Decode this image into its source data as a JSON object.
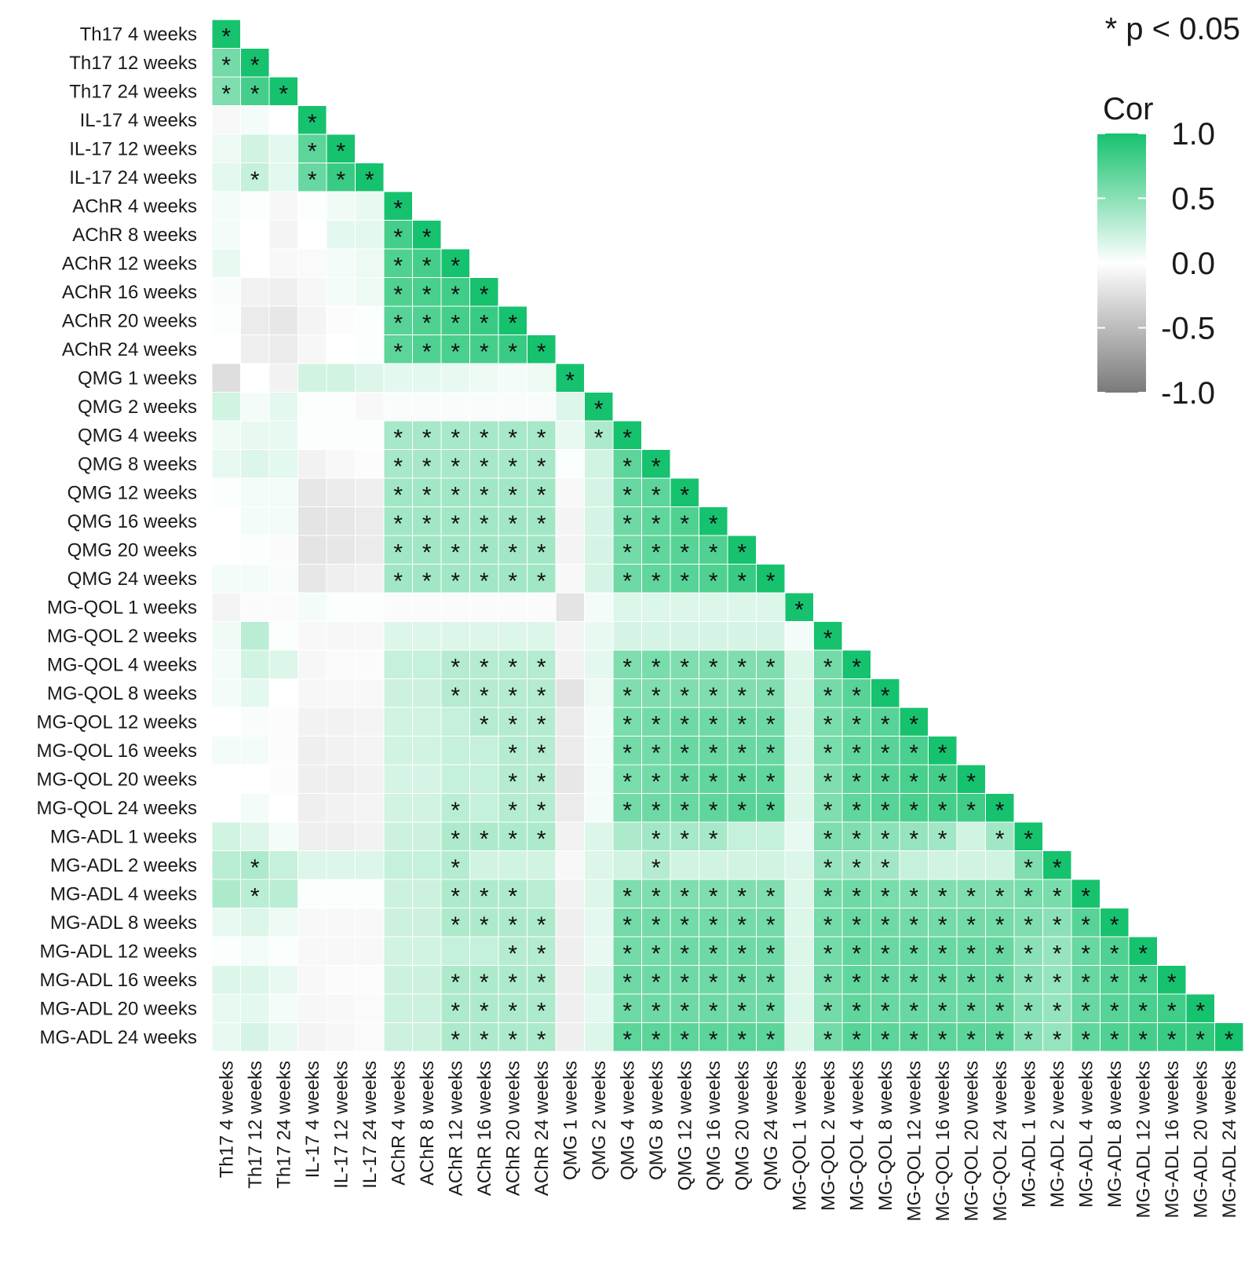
{
  "chart_data": {
    "type": "heatmap",
    "layout": "lower-triangle",
    "variables": [
      "Th17 4 weeks",
      "Th17 12 weeks",
      "Th17 24 weeks",
      "IL-17 4 weeks",
      "IL-17 12 weeks",
      "IL-17 24 weeks",
      "AChR 4 weeks",
      "AChR 8 weeks",
      "AChR 12 weeks",
      "AChR 16 weeks",
      "AChR 20 weeks",
      "AChR 24 weeks",
      "QMG 1 weeks",
      "QMG 2 weeks",
      "QMG 4 weeks",
      "QMG 8 weeks",
      "QMG 12 weeks",
      "QMG 16 weeks",
      "QMG 20 weeks",
      "QMG 24 weeks",
      "MG-QOL 1 weeks",
      "MG-QOL 2 weeks",
      "MG-QOL 4 weeks",
      "MG-QOL 8 weeks",
      "MG-QOL 12 weeks",
      "MG-QOL 16 weeks",
      "MG-QOL 20 weeks",
      "MG-QOL 24 weeks",
      "MG-ADL 1 weeks",
      "MG-ADL 2 weeks",
      "MG-ADL 4 weeks",
      "MG-ADL 8 weeks",
      "MG-ADL 12 weeks",
      "MG-ADL 16 weeks",
      "MG-ADL 20 weeks",
      "MG-ADL 24 weeks"
    ],
    "correlations": [
      [
        1.0
      ],
      [
        0.6,
        1.0
      ],
      [
        0.55,
        0.8,
        1.0
      ],
      [
        -0.05,
        0.05,
        0.0,
        1.0
      ],
      [
        0.08,
        0.2,
        0.12,
        0.7,
        1.0
      ],
      [
        0.12,
        0.25,
        0.12,
        0.65,
        0.85,
        1.0
      ],
      [
        0.05,
        0.02,
        -0.06,
        0.02,
        0.06,
        0.1,
        1.0
      ],
      [
        0.05,
        0.0,
        -0.08,
        0.0,
        0.12,
        0.12,
        0.8,
        1.0
      ],
      [
        0.1,
        0.0,
        -0.05,
        -0.04,
        0.05,
        0.08,
        0.75,
        0.8,
        1.0
      ],
      [
        0.03,
        -0.1,
        -0.12,
        -0.06,
        0.05,
        0.08,
        0.75,
        0.78,
        0.82,
        1.0
      ],
      [
        0.02,
        -0.15,
        -0.18,
        -0.08,
        -0.02,
        0.02,
        0.72,
        0.75,
        0.8,
        0.85,
        1.0
      ],
      [
        0.0,
        -0.12,
        -0.15,
        -0.06,
        0.0,
        0.02,
        0.7,
        0.75,
        0.78,
        0.8,
        0.85,
        1.0
      ],
      [
        -0.25,
        0.0,
        -0.1,
        0.2,
        0.2,
        0.15,
        0.12,
        0.12,
        0.1,
        0.08,
        0.05,
        0.08,
        1.0
      ],
      [
        0.2,
        0.05,
        0.12,
        0.02,
        0.02,
        -0.05,
        0.03,
        0.03,
        0.03,
        0.03,
        0.03,
        0.03,
        0.15,
        1.0
      ],
      [
        0.06,
        0.1,
        0.1,
        0.02,
        0.02,
        0.02,
        0.38,
        0.38,
        0.38,
        0.38,
        0.38,
        0.38,
        0.1,
        0.35,
        1.0
      ],
      [
        0.1,
        0.15,
        0.12,
        -0.1,
        -0.05,
        -0.02,
        0.38,
        0.38,
        0.38,
        0.38,
        0.38,
        0.38,
        0.02,
        0.2,
        0.7,
        1.0
      ],
      [
        0.02,
        0.05,
        0.05,
        -0.18,
        -0.15,
        -0.12,
        0.4,
        0.4,
        0.4,
        0.4,
        0.4,
        0.4,
        -0.05,
        0.18,
        0.65,
        0.7,
        1.0
      ],
      [
        0.0,
        0.05,
        0.05,
        -0.2,
        -0.18,
        -0.15,
        0.4,
        0.4,
        0.4,
        0.4,
        0.4,
        0.4,
        -0.08,
        0.18,
        0.62,
        0.68,
        0.75,
        1.0
      ],
      [
        0.0,
        0.02,
        -0.03,
        -0.2,
        -0.18,
        -0.15,
        0.4,
        0.4,
        0.4,
        0.4,
        0.4,
        0.4,
        -0.08,
        0.18,
        0.6,
        0.68,
        0.72,
        0.75,
        1.0
      ],
      [
        0.05,
        0.05,
        0.03,
        -0.18,
        -0.12,
        -0.1,
        0.4,
        0.4,
        0.4,
        0.4,
        0.4,
        0.4,
        -0.05,
        0.18,
        0.62,
        0.68,
        0.72,
        0.75,
        0.85,
        1.0
      ],
      [
        -0.08,
        -0.03,
        -0.03,
        0.05,
        0.02,
        0.02,
        -0.03,
        -0.03,
        -0.03,
        -0.03,
        -0.03,
        -0.03,
        -0.2,
        0.05,
        0.15,
        0.15,
        0.15,
        0.15,
        0.15,
        0.15,
        1.0
      ],
      [
        0.06,
        0.3,
        0.02,
        -0.05,
        -0.06,
        -0.05,
        0.15,
        0.15,
        0.15,
        0.15,
        0.15,
        0.15,
        -0.08,
        0.1,
        0.18,
        0.18,
        0.18,
        0.18,
        0.18,
        0.18,
        0.05,
        1.0
      ],
      [
        0.05,
        0.2,
        0.15,
        -0.06,
        -0.04,
        -0.03,
        0.25,
        0.25,
        0.32,
        0.32,
        0.32,
        0.32,
        -0.1,
        0.12,
        0.55,
        0.58,
        0.55,
        0.55,
        0.55,
        0.55,
        0.15,
        0.6,
        1.0
      ],
      [
        0.05,
        0.12,
        0.0,
        -0.06,
        -0.05,
        -0.05,
        0.22,
        0.22,
        0.32,
        0.32,
        0.32,
        0.32,
        -0.2,
        0.08,
        0.55,
        0.55,
        0.55,
        0.55,
        0.55,
        0.55,
        0.15,
        0.6,
        0.72,
        1.0
      ],
      [
        0.0,
        0.03,
        -0.02,
        -0.1,
        -0.1,
        -0.08,
        0.2,
        0.2,
        0.25,
        0.32,
        0.32,
        0.32,
        -0.15,
        0.05,
        0.58,
        0.6,
        0.62,
        0.62,
        0.62,
        0.62,
        0.15,
        0.58,
        0.68,
        0.72,
        1.0
      ],
      [
        0.05,
        0.05,
        -0.02,
        -0.12,
        -0.1,
        -0.08,
        0.2,
        0.2,
        0.25,
        0.25,
        0.32,
        0.32,
        -0.15,
        0.05,
        0.6,
        0.6,
        0.65,
        0.65,
        0.65,
        0.65,
        0.15,
        0.58,
        0.68,
        0.72,
        0.78,
        1.0
      ],
      [
        0.0,
        0.0,
        -0.02,
        -0.12,
        -0.12,
        -0.1,
        0.18,
        0.18,
        0.25,
        0.25,
        0.32,
        0.32,
        -0.18,
        0.05,
        0.58,
        0.6,
        0.65,
        0.68,
        0.68,
        0.68,
        0.15,
        0.55,
        0.68,
        0.72,
        0.78,
        0.8,
        1.0
      ],
      [
        0.0,
        0.05,
        0.0,
        -0.12,
        -0.1,
        -0.08,
        0.2,
        0.2,
        0.3,
        0.25,
        0.32,
        0.32,
        -0.15,
        0.05,
        0.6,
        0.62,
        0.65,
        0.68,
        0.72,
        0.72,
        0.15,
        0.55,
        0.68,
        0.72,
        0.78,
        0.8,
        0.82,
        1.0
      ],
      [
        0.2,
        0.15,
        0.05,
        -0.12,
        -0.12,
        -0.1,
        0.22,
        0.22,
        0.35,
        0.35,
        0.35,
        0.35,
        -0.1,
        0.15,
        0.35,
        0.4,
        0.38,
        0.38,
        0.25,
        0.25,
        0.1,
        0.55,
        0.55,
        0.5,
        0.45,
        0.4,
        0.2,
        0.4,
        1.0
      ],
      [
        0.3,
        0.35,
        0.25,
        0.15,
        0.15,
        0.15,
        0.25,
        0.25,
        0.32,
        0.2,
        0.2,
        0.2,
        -0.05,
        0.15,
        0.2,
        0.32,
        0.2,
        0.2,
        0.2,
        0.2,
        0.15,
        0.45,
        0.45,
        0.4,
        0.25,
        0.2,
        0.2,
        0.2,
        0.55,
        1.0
      ],
      [
        0.35,
        0.3,
        0.3,
        0.02,
        0.02,
        0.02,
        0.22,
        0.22,
        0.35,
        0.35,
        0.35,
        0.3,
        -0.1,
        0.15,
        0.55,
        0.55,
        0.55,
        0.55,
        0.55,
        0.55,
        0.15,
        0.58,
        0.62,
        0.58,
        0.55,
        0.55,
        0.55,
        0.55,
        0.58,
        0.58,
        1.0
      ],
      [
        0.1,
        0.15,
        0.08,
        -0.05,
        -0.05,
        -0.05,
        0.22,
        0.22,
        0.35,
        0.35,
        0.35,
        0.35,
        -0.12,
        0.12,
        0.6,
        0.6,
        0.6,
        0.6,
        0.6,
        0.6,
        0.15,
        0.6,
        0.65,
        0.62,
        0.6,
        0.6,
        0.6,
        0.6,
        0.55,
        0.5,
        0.72,
        1.0
      ],
      [
        0.02,
        0.05,
        0.02,
        -0.05,
        -0.05,
        -0.05,
        0.2,
        0.2,
        0.25,
        0.25,
        0.32,
        0.32,
        -0.12,
        0.1,
        0.6,
        0.6,
        0.62,
        0.62,
        0.62,
        0.62,
        0.15,
        0.6,
        0.68,
        0.65,
        0.65,
        0.65,
        0.65,
        0.65,
        0.5,
        0.45,
        0.65,
        0.75,
        1.0
      ],
      [
        0.15,
        0.15,
        0.1,
        -0.05,
        -0.03,
        -0.02,
        0.22,
        0.22,
        0.35,
        0.35,
        0.35,
        0.35,
        -0.12,
        0.15,
        0.62,
        0.62,
        0.62,
        0.62,
        0.62,
        0.62,
        0.15,
        0.6,
        0.68,
        0.65,
        0.65,
        0.65,
        0.65,
        0.65,
        0.5,
        0.45,
        0.65,
        0.72,
        0.78,
        1.0
      ],
      [
        0.1,
        0.12,
        0.05,
        -0.06,
        -0.05,
        -0.04,
        0.22,
        0.22,
        0.35,
        0.35,
        0.35,
        0.35,
        -0.12,
        0.12,
        0.62,
        0.62,
        0.62,
        0.62,
        0.62,
        0.62,
        0.15,
        0.6,
        0.68,
        0.65,
        0.65,
        0.65,
        0.65,
        0.65,
        0.5,
        0.45,
        0.65,
        0.72,
        0.78,
        0.82,
        1.0
      ],
      [
        0.1,
        0.18,
        0.1,
        -0.08,
        -0.06,
        -0.04,
        0.22,
        0.22,
        0.35,
        0.35,
        0.35,
        0.35,
        -0.12,
        0.15,
        0.7,
        0.7,
        0.7,
        0.7,
        0.7,
        0.7,
        0.15,
        0.6,
        0.72,
        0.7,
        0.7,
        0.7,
        0.7,
        0.7,
        0.5,
        0.45,
        0.68,
        0.75,
        0.8,
        0.85,
        0.88,
        1.0
      ]
    ],
    "significance": [
      [
        1
      ],
      [
        1,
        1
      ],
      [
        1,
        1,
        1
      ],
      [
        0,
        0,
        0,
        1
      ],
      [
        0,
        0,
        0,
        1,
        1
      ],
      [
        0,
        1,
        0,
        1,
        1,
        1
      ],
      [
        0,
        0,
        0,
        0,
        0,
        0,
        1
      ],
      [
        0,
        0,
        0,
        0,
        0,
        0,
        1,
        1
      ],
      [
        0,
        0,
        0,
        0,
        0,
        0,
        1,
        1,
        1
      ],
      [
        0,
        0,
        0,
        0,
        0,
        0,
        1,
        1,
        1,
        1
      ],
      [
        0,
        0,
        0,
        0,
        0,
        0,
        1,
        1,
        1,
        1,
        1
      ],
      [
        0,
        0,
        0,
        0,
        0,
        0,
        1,
        1,
        1,
        1,
        1,
        1
      ],
      [
        0,
        0,
        0,
        0,
        0,
        0,
        0,
        0,
        0,
        0,
        0,
        0,
        1
      ],
      [
        0,
        0,
        0,
        0,
        0,
        0,
        0,
        0,
        0,
        0,
        0,
        0,
        0,
        1
      ],
      [
        0,
        0,
        0,
        0,
        0,
        0,
        1,
        1,
        1,
        1,
        1,
        1,
        0,
        1,
        1
      ],
      [
        0,
        0,
        0,
        0,
        0,
        0,
        1,
        1,
        1,
        1,
        1,
        1,
        0,
        0,
        1,
        1
      ],
      [
        0,
        0,
        0,
        0,
        0,
        0,
        1,
        1,
        1,
        1,
        1,
        1,
        0,
        0,
        1,
        1,
        1
      ],
      [
        0,
        0,
        0,
        0,
        0,
        0,
        1,
        1,
        1,
        1,
        1,
        1,
        0,
        0,
        1,
        1,
        1,
        1
      ],
      [
        0,
        0,
        0,
        0,
        0,
        0,
        1,
        1,
        1,
        1,
        1,
        1,
        0,
        0,
        1,
        1,
        1,
        1,
        1
      ],
      [
        0,
        0,
        0,
        0,
        0,
        0,
        1,
        1,
        1,
        1,
        1,
        1,
        0,
        0,
        1,
        1,
        1,
        1,
        1,
        1
      ],
      [
        0,
        0,
        0,
        0,
        0,
        0,
        0,
        0,
        0,
        0,
        0,
        0,
        0,
        0,
        0,
        0,
        0,
        0,
        0,
        0,
        1
      ],
      [
        0,
        0,
        0,
        0,
        0,
        0,
        0,
        0,
        0,
        0,
        0,
        0,
        0,
        0,
        0,
        0,
        0,
        0,
        0,
        0,
        0,
        1
      ],
      [
        0,
        0,
        0,
        0,
        0,
        0,
        0,
        0,
        1,
        1,
        1,
        1,
        0,
        0,
        1,
        1,
        1,
        1,
        1,
        1,
        0,
        1,
        1
      ],
      [
        0,
        0,
        0,
        0,
        0,
        0,
        0,
        0,
        1,
        1,
        1,
        1,
        0,
        0,
        1,
        1,
        1,
        1,
        1,
        1,
        0,
        1,
        1,
        1
      ],
      [
        0,
        0,
        0,
        0,
        0,
        0,
        0,
        0,
        0,
        1,
        1,
        1,
        0,
        0,
        1,
        1,
        1,
        1,
        1,
        1,
        0,
        1,
        1,
        1,
        1
      ],
      [
        0,
        0,
        0,
        0,
        0,
        0,
        0,
        0,
        0,
        0,
        1,
        1,
        0,
        0,
        1,
        1,
        1,
        1,
        1,
        1,
        0,
        1,
        1,
        1,
        1,
        1
      ],
      [
        0,
        0,
        0,
        0,
        0,
        0,
        0,
        0,
        0,
        0,
        1,
        1,
        0,
        0,
        1,
        1,
        1,
        1,
        1,
        1,
        0,
        1,
        1,
        1,
        1,
        1,
        1
      ],
      [
        0,
        0,
        0,
        0,
        0,
        0,
        0,
        0,
        1,
        0,
        1,
        1,
        0,
        0,
        1,
        1,
        1,
        1,
        1,
        1,
        0,
        1,
        1,
        1,
        1,
        1,
        1,
        1
      ],
      [
        0,
        0,
        0,
        0,
        0,
        0,
        0,
        0,
        1,
        1,
        1,
        1,
        0,
        0,
        0,
        1,
        1,
        1,
        0,
        0,
        0,
        1,
        1,
        1,
        1,
        1,
        0,
        1,
        1
      ],
      [
        0,
        1,
        0,
        0,
        0,
        0,
        0,
        0,
        1,
        0,
        0,
        0,
        0,
        0,
        0,
        1,
        0,
        0,
        0,
        0,
        0,
        1,
        1,
        1,
        0,
        0,
        0,
        0,
        1,
        1
      ],
      [
        0,
        1,
        0,
        0,
        0,
        0,
        0,
        0,
        1,
        1,
        1,
        0,
        0,
        0,
        1,
        1,
        1,
        1,
        1,
        1,
        0,
        1,
        1,
        1,
        1,
        1,
        1,
        1,
        1,
        1,
        1
      ],
      [
        0,
        0,
        0,
        0,
        0,
        0,
        0,
        0,
        1,
        1,
        1,
        1,
        0,
        0,
        1,
        1,
        1,
        1,
        1,
        1,
        0,
        1,
        1,
        1,
        1,
        1,
        1,
        1,
        1,
        1,
        1,
        1
      ],
      [
        0,
        0,
        0,
        0,
        0,
        0,
        0,
        0,
        0,
        0,
        1,
        1,
        0,
        0,
        1,
        1,
        1,
        1,
        1,
        1,
        0,
        1,
        1,
        1,
        1,
        1,
        1,
        1,
        1,
        1,
        1,
        1,
        1
      ],
      [
        0,
        0,
        0,
        0,
        0,
        0,
        0,
        0,
        1,
        1,
        1,
        1,
        0,
        0,
        1,
        1,
        1,
        1,
        1,
        1,
        0,
        1,
        1,
        1,
        1,
        1,
        1,
        1,
        1,
        1,
        1,
        1,
        1,
        1
      ],
      [
        0,
        0,
        0,
        0,
        0,
        0,
        0,
        0,
        1,
        1,
        1,
        1,
        0,
        0,
        1,
        1,
        1,
        1,
        1,
        1,
        0,
        1,
        1,
        1,
        1,
        1,
        1,
        1,
        1,
        1,
        1,
        1,
        1,
        1,
        1
      ],
      [
        0,
        0,
        0,
        0,
        0,
        0,
        0,
        0,
        1,
        1,
        1,
        1,
        0,
        0,
        1,
        1,
        1,
        1,
        1,
        1,
        0,
        1,
        1,
        1,
        1,
        1,
        1,
        1,
        1,
        1,
        1,
        1,
        1,
        1,
        1,
        1
      ]
    ],
    "significance_marker": "*",
    "significance_note": "* p < 0.05",
    "legend": {
      "title": "Cor",
      "ticks": [
        "1.0",
        "0.5",
        "0.0",
        "-0.5",
        "-1.0"
      ],
      "tick_values": [
        1.0,
        0.5,
        0.0,
        -0.5,
        -1.0
      ],
      "placement": "top-right"
    },
    "color_scale": {
      "low": "#7a7a7a",
      "mid": "#ffffff",
      "high": "#16c26e",
      "domain": [
        -1,
        0,
        1
      ]
    },
    "title": "",
    "xlabel": "",
    "ylabel": ""
  }
}
